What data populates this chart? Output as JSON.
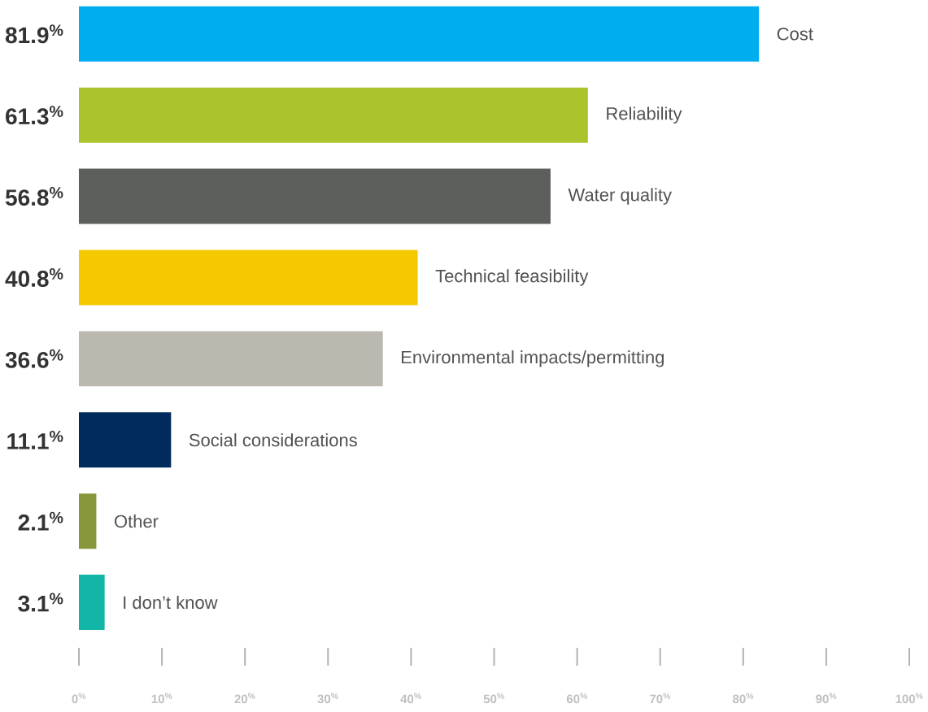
{
  "chart_data": {
    "type": "bar",
    "orientation": "horizontal",
    "categories": [
      "Cost",
      "Reliability",
      "Water quality",
      "Technical feasibility",
      "Environmental impacts/permitting",
      "Social considerations",
      "Other",
      "I don’t know"
    ],
    "values": [
      81.9,
      61.3,
      56.8,
      40.8,
      36.6,
      11.1,
      2.1,
      3.1
    ],
    "colors": [
      "#00aeef",
      "#acc42c",
      "#5d5f5c",
      "#f4c900",
      "#bbb8b0",
      "#002b5c",
      "#88963c",
      "#13b5a6"
    ],
    "value_labels": [
      "81.9$^{%}$",
      "61.3$^{%}$",
      "56.8$^{%}$",
      "40.8$^{%}$",
      "36.6$^{%}$",
      "11.1$^{%}$",
      "2.1$^{%}$",
      "3.1$^{%}$"
    ],
    "xlim": [
      0,
      100
    ],
    "xticks": [
      {
        "value": 0,
        "label": "0$^{%}$"
      },
      {
        "value": 10,
        "label": "10$^{%}$"
      },
      {
        "value": 20,
        "label": "20$^{%}$"
      },
      {
        "value": 30,
        "label": "30$^{%}$"
      },
      {
        "value": 40,
        "label": "40$^{%}$"
      },
      {
        "value": 50,
        "label": "50$^{%}$"
      },
      {
        "value": 60,
        "label": "60$^{%}$"
      },
      {
        "value": 70,
        "label": "70$^{%}$"
      },
      {
        "value": 80,
        "label": "80$^{%}$"
      },
      {
        "value": 90,
        "label": "90$^{%}$"
      },
      {
        "value": 100,
        "label": "100$^{%}$"
      }
    ],
    "grid": false
  }
}
